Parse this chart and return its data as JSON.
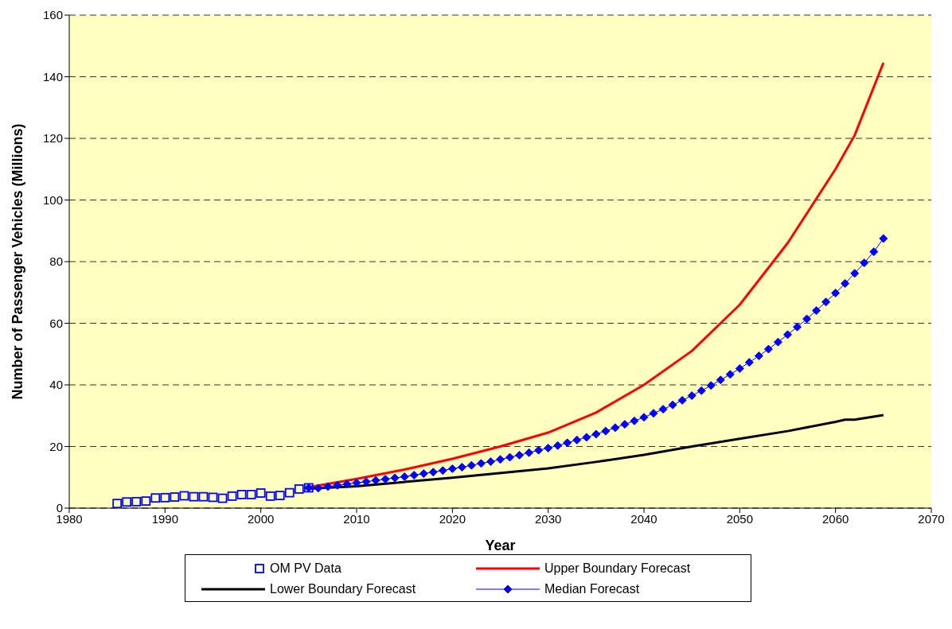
{
  "chart_data": {
    "type": "line",
    "xlabel": "Year",
    "ylabel": "Number of Passenger Vehicles (Millions)",
    "xlim": [
      1980,
      2070
    ],
    "xticks": [
      1980,
      1990,
      2000,
      2010,
      2020,
      2030,
      2040,
      2050,
      2060,
      2070
    ],
    "ylim": [
      0,
      160
    ],
    "yticks": [
      0,
      20,
      40,
      60,
      80,
      100,
      120,
      140,
      160
    ],
    "grid": "y",
    "legend": "bottom",
    "line_style": "solid",
    "series": [
      {
        "name": "OM PV Data",
        "type": "scatter",
        "marker": "square",
        "color": "#0000ff",
        "x": [
          1985,
          1986,
          1987,
          1988,
          1989,
          1990,
          1991,
          1992,
          1993,
          1994,
          1995,
          1996,
          1997,
          1998,
          1999,
          2000,
          2001,
          2002,
          2003,
          2004,
          2005
        ],
        "values": [
          1.5,
          2.0,
          2.1,
          2.3,
          3.3,
          3.4,
          3.6,
          4.0,
          3.7,
          3.7,
          3.5,
          3.2,
          3.9,
          4.4,
          4.4,
          4.9,
          3.9,
          4.1,
          5.0,
          6.2,
          6.6
        ]
      },
      {
        "name": "Upper Boundary Forecast",
        "marker": "none",
        "color": "#ff0000",
        "x": [
          2005,
          2010,
          2015,
          2020,
          2025,
          2030,
          2035,
          2040,
          2045,
          2050,
          2055,
          2060,
          2062,
          2065
        ],
        "values": [
          6.8,
          9.5,
          12.5,
          16,
          20,
          24.5,
          31,
          40,
          51,
          66,
          86,
          110,
          121,
          144.5
        ]
      },
      {
        "name": "Lower Boundary Forecast",
        "marker": "none",
        "color": "#000000",
        "x": [
          2005,
          2010,
          2020,
          2030,
          2035,
          2040,
          2045,
          2050,
          2055,
          2060,
          2061,
          2062,
          2065
        ],
        "values": [
          6.3,
          7.1,
          9.9,
          12.9,
          15,
          17.3,
          20,
          22.5,
          25,
          28,
          28.7,
          28.7,
          30.2
        ]
      },
      {
        "name": "Median Forecast",
        "marker": "diamond",
        "color": "#0000ff",
        "x": [
          2005,
          2006,
          2007,
          2008,
          2009,
          2010,
          2011,
          2012,
          2013,
          2014,
          2015,
          2016,
          2017,
          2018,
          2019,
          2020,
          2021,
          2022,
          2023,
          2024,
          2025,
          2026,
          2027,
          2028,
          2029,
          2030,
          2031,
          2032,
          2033,
          2034,
          2035,
          2036,
          2037,
          2038,
          2039,
          2040,
          2041,
          2042,
          2043,
          2044,
          2045,
          2046,
          2047,
          2048,
          2049,
          2050,
          2051,
          2052,
          2053,
          2054,
          2055,
          2056,
          2057,
          2058,
          2059,
          2060,
          2061,
          2062,
          2063,
          2064,
          2065
        ],
        "values": [
          6.6,
          6.5,
          7.0,
          7.4,
          7.8,
          8.2,
          8.6,
          9.0,
          9.4,
          9.8,
          10.2,
          10.7,
          11.2,
          11.7,
          12.2,
          12.8,
          13.3,
          13.9,
          14.5,
          15.1,
          15.8,
          16.5,
          17.2,
          18.0,
          18.8,
          19.5,
          20.3,
          21.2,
          22.1,
          23.0,
          24.0,
          25.0,
          26.1,
          27.2,
          28.3,
          29.5,
          30.8,
          32.1,
          33.5,
          35.0,
          36.5,
          38.1,
          39.8,
          41.6,
          43.4,
          45.3,
          47.3,
          49.4,
          51.6,
          53.9,
          56.3,
          58.8,
          61.4,
          64.1,
          66.9,
          69.8,
          72.9,
          76.2,
          79.6,
          83.2,
          87.5
        ]
      }
    ]
  }
}
